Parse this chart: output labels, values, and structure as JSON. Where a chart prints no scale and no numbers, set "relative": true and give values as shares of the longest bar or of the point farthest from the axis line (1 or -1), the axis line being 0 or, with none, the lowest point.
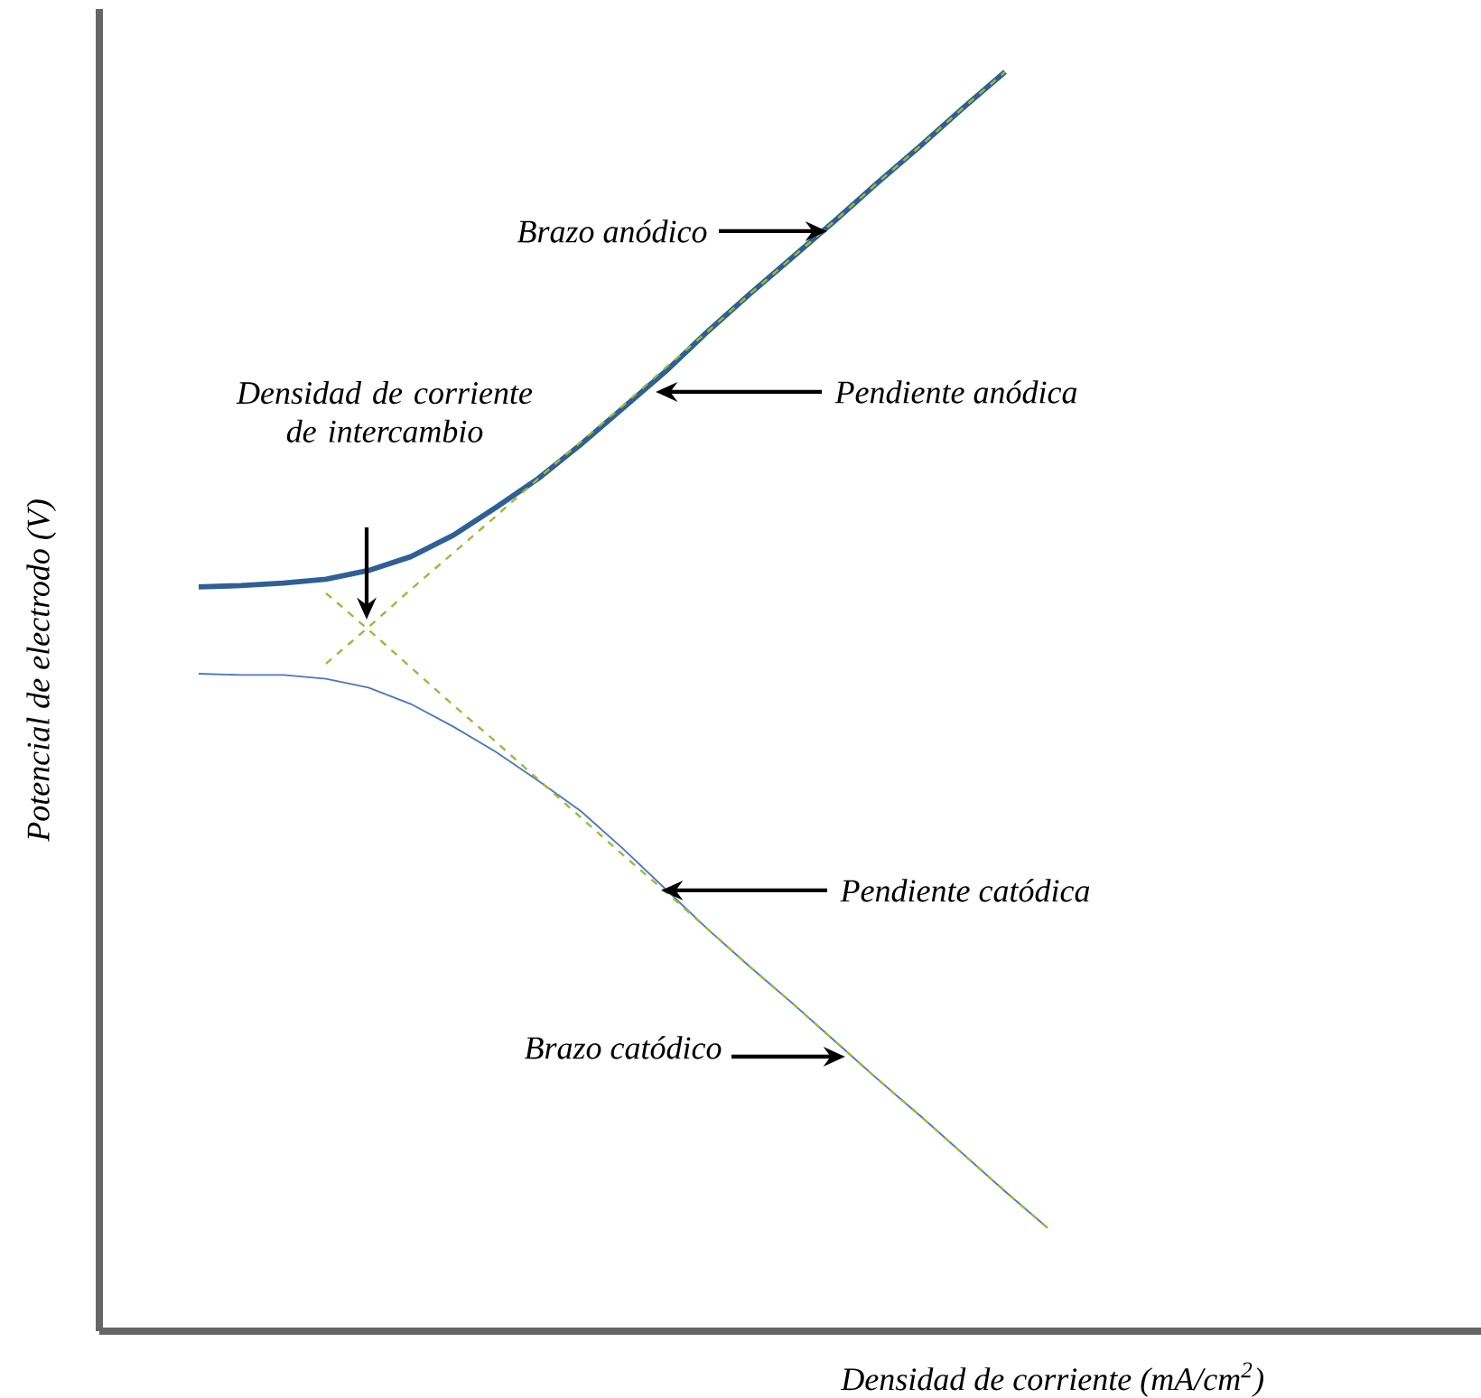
{
  "chart_data": {
    "type": "line",
    "relative": true,
    "xlabel": "Densidad de corriente (mA/cm$^{2}$)",
    "ylabel": "Potencial de electrodo (V)",
    "categories": [
      null,
      null,
      null,
      null,
      null,
      null,
      null,
      null,
      null,
      null,
      null,
      null,
      null,
      null,
      null,
      null,
      null,
      null,
      null,
      null,
      null
    ],
    "series": [
      {
        "color": "#2f5f95",
        "line_style": "solid",
        "values": [
          0.591,
          0.592,
          0.594,
          0.597,
          0.604,
          0.615,
          0.632,
          0.654,
          0.677,
          0.704,
          0.733,
          0.762,
          0.794,
          0.824,
          0.853,
          0.882,
          0.912,
          0.941,
          0.971,
          1.0,
          null
        ]
      },
      {
        "color": "#4a78c0",
        "line_style": "solid",
        "values": [
          0.522,
          0.521,
          0.521,
          0.518,
          0.511,
          0.498,
          0.48,
          0.46,
          0.437,
          0.413,
          0.383,
          0.351,
          0.319,
          0.289,
          0.26,
          0.23,
          0.2,
          0.171,
          0.141,
          0.111,
          0.082
        ]
      },
      {
        "color": "#9bbb3a",
        "line_style": "dashed",
        "values": [
          null,
          null,
          null,
          0.53,
          0.559,
          0.589,
          0.618,
          0.647,
          0.677,
          0.706,
          0.735,
          0.765,
          0.794,
          0.824,
          0.853,
          0.882,
          0.912,
          0.941,
          0.971,
          1.0,
          null
        ]
      },
      {
        "color": "#9bbb3a",
        "line_style": "dashed",
        "values": [
          null,
          null,
          null,
          0.586,
          0.557,
          0.527,
          0.497,
          0.468,
          0.438,
          0.408,
          0.378,
          0.349,
          0.319,
          0.289,
          0.26,
          0.23,
          0.2,
          0.171,
          0.141,
          0.111,
          0.082
        ]
      }
    ],
    "annotations": [
      "Brazo anódico",
      "Pendiente anódica",
      "Densidad de corriente de intercambio",
      "Pendiente catódica",
      "Brazo catódico"
    ]
  }
}
